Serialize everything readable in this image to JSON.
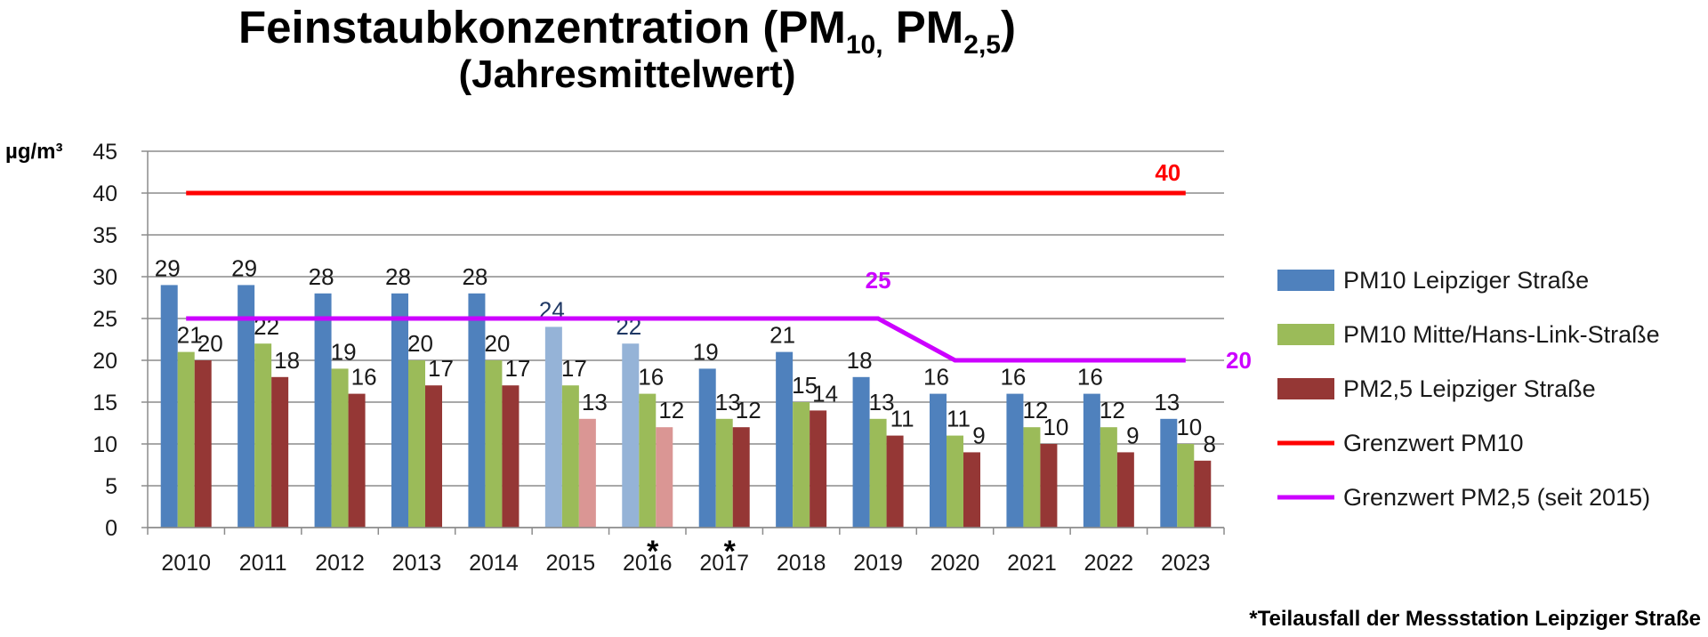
{
  "title": {
    "main": "Feinstaubkonzentration (PM",
    "sub1": "10,",
    "mid": " PM",
    "sub2": "2,5",
    "close": ")",
    "line2": "(Jahresmittelwert)"
  },
  "footnote": "*Teilausfall der Messstation Leipziger Straße",
  "chart_data": {
    "type": "bar",
    "ylabel": "µg/m³",
    "ylim": [
      0,
      45
    ],
    "yticks": [
      0,
      5,
      10,
      15,
      20,
      25,
      30,
      35,
      40,
      45
    ],
    "grid": true,
    "legend_position": "right",
    "categories": [
      "2010",
      "2011",
      "2012",
      "2013",
      "2014",
      "2015",
      "2016",
      "2017",
      "2018",
      "2019",
      "2020",
      "2021",
      "2022",
      "2023"
    ],
    "category_marks": [
      "",
      "",
      "",
      "",
      "",
      "",
      "*",
      "*",
      "",
      "",
      "",
      "",
      "",
      ""
    ],
    "series": [
      {
        "name": "PM10 Leipziger Straße",
        "color": "#4F81BD",
        "light_color": "#95B3D7",
        "values": [
          29,
          29,
          28,
          28,
          28,
          24,
          22,
          19,
          21,
          18,
          16,
          16,
          16,
          13
        ],
        "labels": [
          "29",
          "29",
          "28",
          "28",
          "28",
          "24",
          "22",
          "19",
          "21",
          "18",
          "16",
          "16",
          "16",
          "13"
        ]
      },
      {
        "name": "PM10 Mitte/Hans-Link-Straße",
        "color": "#9BBB59",
        "light_color": "#9BBB59",
        "values": [
          21,
          22,
          19,
          20,
          20,
          17,
          16,
          13,
          15,
          13,
          11,
          12,
          12,
          10
        ],
        "labels": [
          "21",
          "22",
          "19",
          "20",
          "20",
          "17",
          "16",
          "13",
          "15",
          "13",
          "11",
          "12",
          "12",
          "10"
        ]
      },
      {
        "name": "PM2,5 Leipziger Straße",
        "color": "#953735",
        "light_color": "#DA9694",
        "values": [
          20,
          18,
          16,
          17,
          17,
          13,
          12,
          12,
          14,
          11,
          9,
          10,
          9,
          8
        ],
        "labels": [
          "20",
          "18",
          "16",
          "17",
          "17",
          "13",
          "12",
          "12",
          "14",
          "11",
          "9",
          "10",
          "9",
          "8"
        ]
      }
    ],
    "light_categories": [
      "2015",
      "2016"
    ],
    "lines": [
      {
        "name": "Grenzwert PM10",
        "color": "#FF0000",
        "values": [
          40,
          40,
          40,
          40,
          40,
          40,
          40,
          40,
          40,
          40,
          40,
          40,
          40,
          40
        ],
        "label": "40"
      },
      {
        "name": "Grenzwert PM2,5 (seit 2015)",
        "color": "#CC00FF",
        "values": [
          25,
          25,
          25,
          25,
          25,
          25,
          25,
          25,
          25,
          25,
          20,
          20,
          20,
          20
        ],
        "labels": [
          "25",
          "20"
        ]
      }
    ]
  }
}
